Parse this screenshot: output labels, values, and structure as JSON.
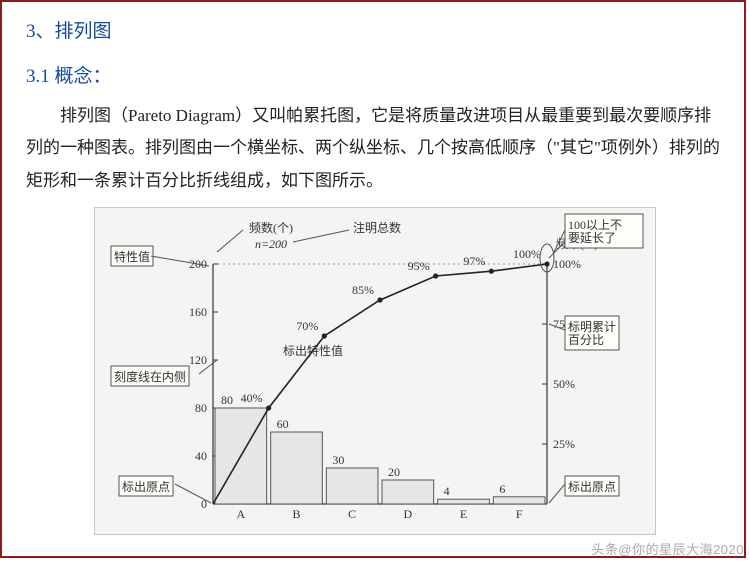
{
  "headings": {
    "h1": "3、排列图",
    "h2": "3.1 概念："
  },
  "paragraph": "排列图（Pareto Diagram）又叫帕累托图，它是将质量改进项目从最重要到最次要顺序排列的一种图表。排列图由一个横坐标、两个纵坐标、几个按高低顺序（\"其它\"项例外）排列的矩形和一条累计百分比折线组成，如下图所示。",
  "chart": {
    "type": "pareto",
    "background_color": "#f4f4f2",
    "border_color": "#c8c8c8",
    "note_total_label": "注明总数",
    "n_label": "n=200",
    "left_axis": {
      "label_top": "频数(个)",
      "min": 0,
      "max": 200,
      "ticks": [
        0,
        40,
        80,
        120,
        160,
        200
      ]
    },
    "right_axis": {
      "label_top": "频率(%)",
      "min": 0,
      "max": 100,
      "ticks": [
        "25%",
        "50%",
        "75%",
        "100%"
      ]
    },
    "categories": [
      "A",
      "B",
      "C",
      "D",
      "E",
      "F"
    ],
    "bar_values": [
      80,
      60,
      30,
      20,
      4,
      6
    ],
    "bar_visible_labels": [
      "80",
      "60",
      "30",
      "20",
      "4",
      "6"
    ],
    "bar_fill": "#e6e6e4",
    "bar_stroke": "#555",
    "cum_percent": [
      40,
      70,
      85,
      95,
      97,
      100
    ],
    "cum_labels": [
      "40%",
      "70%",
      "85%",
      "95%",
      "97%",
      "100%"
    ],
    "line_color": "#222",
    "calc_label": "标出特性值",
    "callouts": {
      "teXing": "特性值",
      "keduLine": "刻度线在内侧",
      "originL": "标出原点",
      "originR": "标出原点",
      "top100": "100以上不要延长了",
      "rightCum": "标明累计百分比"
    },
    "fontsize": 12,
    "grid_dash_color": "#999"
  },
  "watermark": "头条@你的星辰大海2020"
}
